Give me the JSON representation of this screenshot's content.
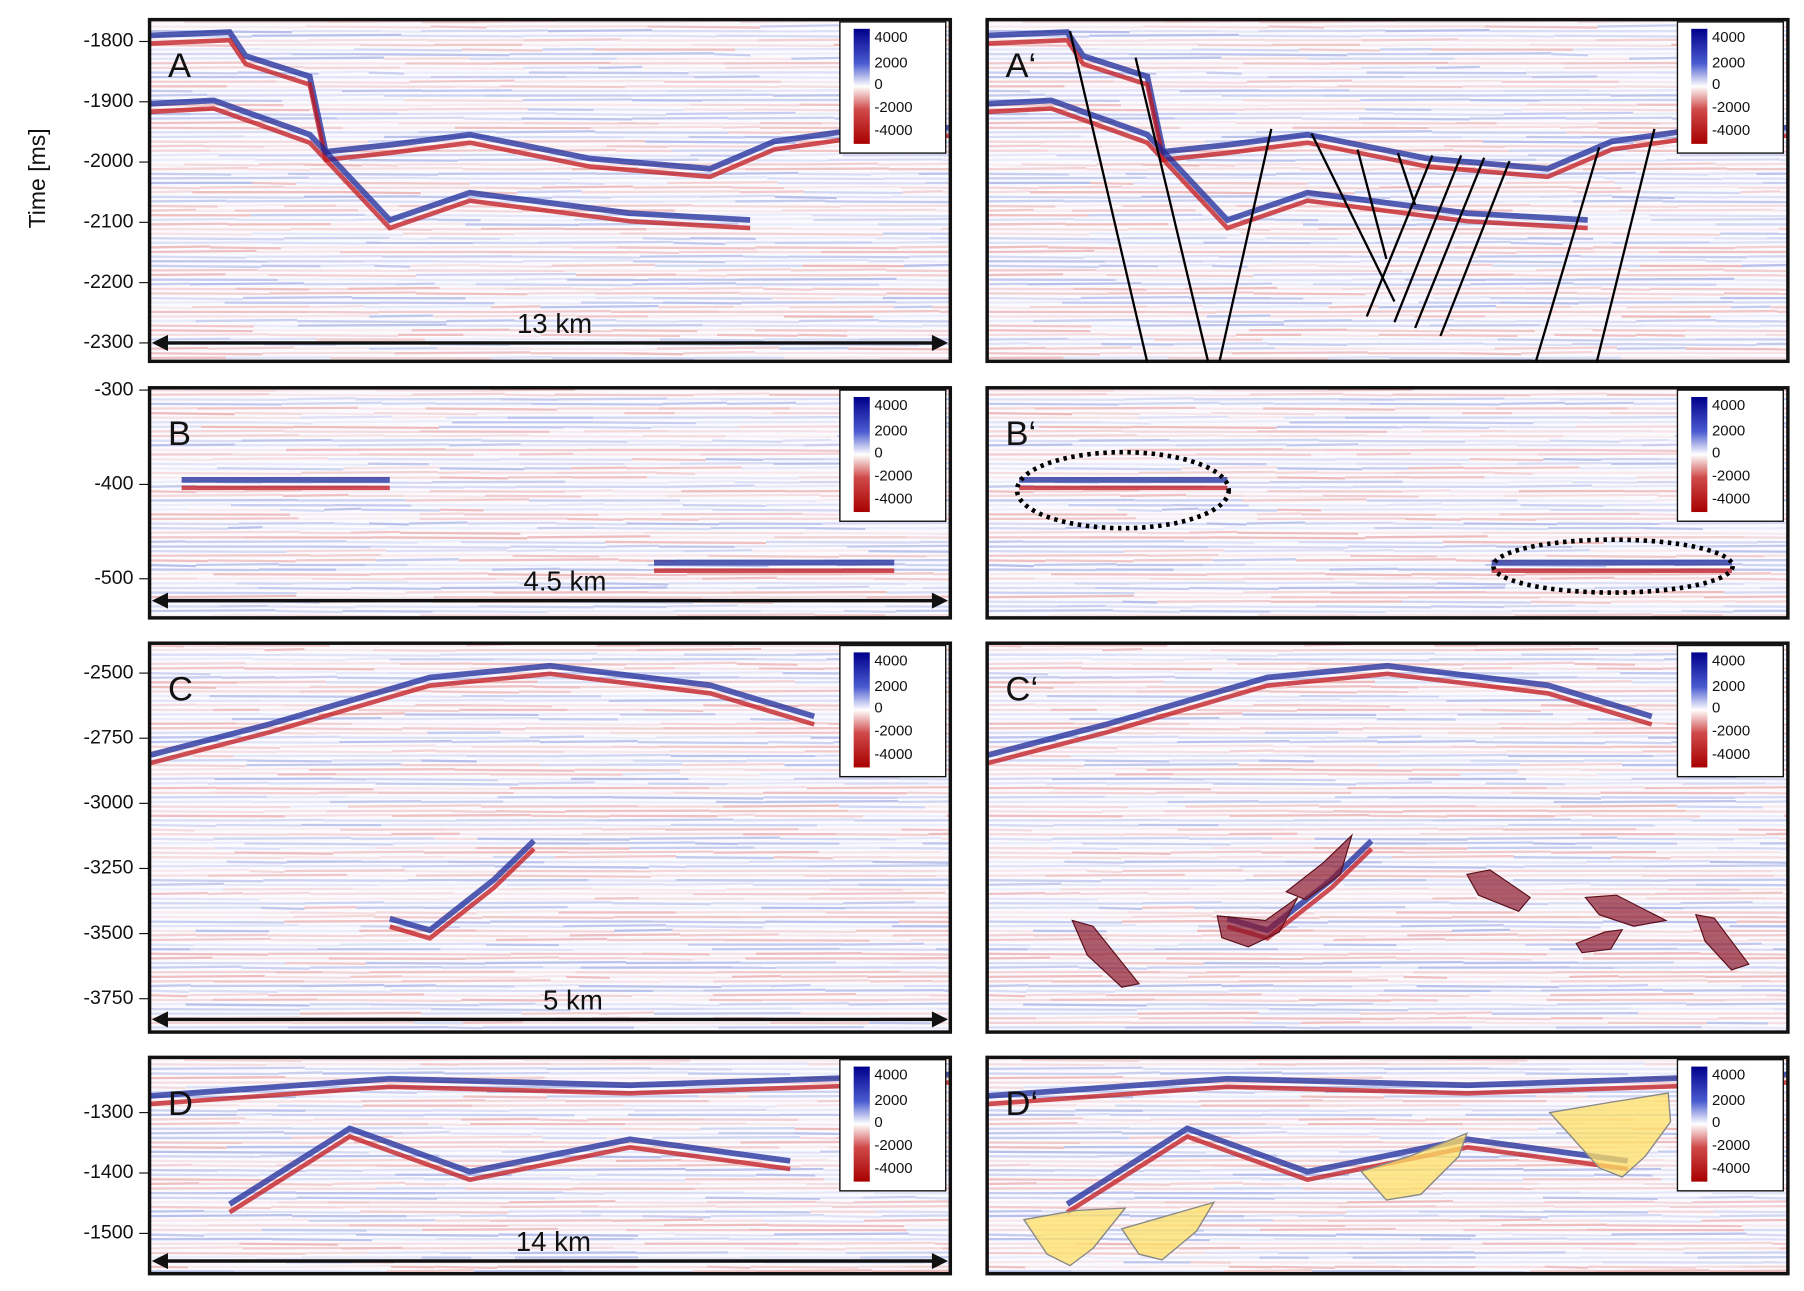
{
  "y_axis_label": "Time [ms]",
  "panels": [
    {
      "label": "A",
      "annotated_label": "A‘",
      "yticks": [
        -1800,
        -1900,
        -2000,
        -2100,
        -2200,
        -2300
      ],
      "scale": "13 km",
      "colorbar": [
        4000,
        2000,
        0,
        -2000,
        -4000
      ]
    },
    {
      "label": "B",
      "annotated_label": "B‘",
      "yticks": [
        -300,
        -400,
        -500
      ],
      "scale": "4.5 km",
      "colorbar": [
        4000,
        2000,
        0,
        -2000,
        -4000
      ]
    },
    {
      "label": "C",
      "annotated_label": "C‘",
      "yticks": [
        -2500,
        -2750,
        -3000,
        -3250,
        -3500,
        -3750
      ],
      "scale": "5 km",
      "colorbar": [
        4000,
        2000,
        0,
        -2000,
        -4000
      ]
    },
    {
      "label": "D",
      "annotated_label": "D‘",
      "yticks": [
        -1300,
        -1400,
        -1500
      ],
      "scale": "14 km",
      "colorbar": [
        4000,
        2000,
        0,
        -2000,
        -4000
      ]
    }
  ]
}
